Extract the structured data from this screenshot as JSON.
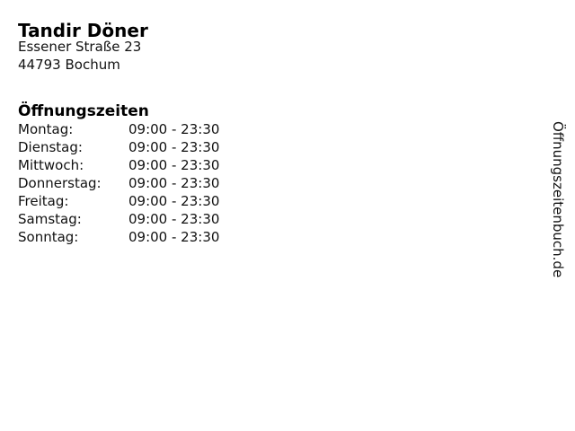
{
  "business": {
    "name": "Tandir Döner",
    "address_line1": "Essener Straße 23",
    "address_line2": "44793 Bochum"
  },
  "hours": {
    "heading": "Öffnungszeiten",
    "rows": [
      {
        "day": "Montag:",
        "time": "09:00 - 23:30"
      },
      {
        "day": "Dienstag:",
        "time": "09:00 - 23:30"
      },
      {
        "day": "Mittwoch:",
        "time": "09:00 - 23:30"
      },
      {
        "day": "Donnerstag:",
        "time": "09:00 - 23:30"
      },
      {
        "day": "Freitag:",
        "time": "09:00 - 23:30"
      },
      {
        "day": "Samstag:",
        "time": "09:00 - 23:30"
      },
      {
        "day": "Sonntag:",
        "time": "09:00 - 23:30"
      }
    ]
  },
  "watermark": {
    "text": "Öffnungszeitenbuch.de"
  },
  "colors": {
    "background": "#ffffff",
    "text": "#000000"
  }
}
